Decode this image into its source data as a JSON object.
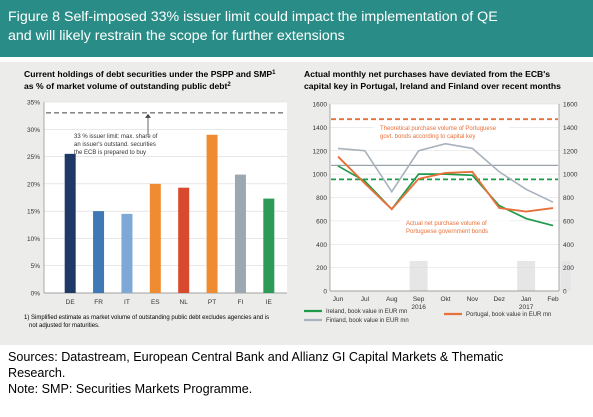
{
  "header": {
    "title_line1": "Figure 8  Self-imposed 33% issuer limit could impact the implementation of QE",
    "title_line2": "and will likely restrain the scope for further extensions"
  },
  "colors": {
    "header_bg": "#2a8c86",
    "panel_bg": "#ececea",
    "bar_navy": "#1f3966",
    "bar_blue": "#3f78b6",
    "bar_lightblue": "#7ea8d6",
    "bar_orange": "#ef8c32",
    "bar_red": "#d8492d",
    "bar_gray": "#9da7b1",
    "bar_green": "#2e9a58",
    "ireland_line": "#1e9a4a",
    "finland_line": "#a8b2bd",
    "portugal_line": "#e8703a",
    "theoretical_line": "#e8703a",
    "capital_key_ireland": "#1e9a4a",
    "capital_key_finland": "#9aa3ac"
  },
  "chart_data": [
    {
      "type": "bar",
      "title_line1": "Current holdings of debt securities under the PSPP and SMP",
      "title_sup1": "1",
      "title_line2": "as % of market volume of outstanding public debt",
      "title_sup2": "2",
      "categories": [
        "DE",
        "FR",
        "IT",
        "ES",
        "NL",
        "PT",
        "FI",
        "IE"
      ],
      "values": [
        25.5,
        15,
        14.5,
        20,
        19.3,
        29,
        21.7,
        17.3
      ],
      "bar_colors": [
        "#1f3966",
        "#3f78b6",
        "#7ea8d6",
        "#ef8c32",
        "#d8492d",
        "#ef8c32",
        "#9da7b1",
        "#2e9a58"
      ],
      "ylim": [
        0,
        35
      ],
      "yticks": [
        "0%",
        "5%",
        "10%",
        "15%",
        "20%",
        "25%",
        "30%",
        "35%"
      ],
      "limit_value": 33,
      "annotation": [
        "33 % issuer limit: max. share of",
        "an issuer's outstand. securities",
        "the ECB is prepared to buy"
      ],
      "footnote": [
        "1) Simplified estimate as market volume of outstanding public debt excludes agencies and is",
        "not adjusted for maturities."
      ]
    },
    {
      "type": "line",
      "title_line1": "Actual monthly net purchases have deviated from the ECB's",
      "title_line2": "capital key in Portugal, Ireland and Finland over recent months",
      "x": [
        "Jun",
        "Jul",
        "Aug",
        "Sep",
        "Okt",
        "Nov",
        "Dez",
        "Jan",
        "Feb"
      ],
      "year_labels": [
        {
          "label": "2016",
          "at": "Sep"
        },
        {
          "label": "2017",
          "at": "Jan"
        }
      ],
      "ylim": [
        0,
        1600
      ],
      "yticks": [
        0,
        200,
        400,
        600,
        800,
        1000,
        1200,
        1400,
        1600
      ],
      "series": [
        {
          "name": "Ireland, book value in EUR mn",
          "values": [
            1070,
            940,
            700,
            1000,
            1000,
            990,
            730,
            620,
            560
          ]
        },
        {
          "name": "Finland, book value in EUR mn",
          "values": [
            1220,
            1200,
            850,
            1200,
            1260,
            1220,
            1020,
            870,
            760
          ]
        },
        {
          "name": "Portugal, book value in EUR mn",
          "values": [
            1150,
            920,
            700,
            960,
            1010,
            1020,
            710,
            680,
            710
          ]
        }
      ],
      "capital_key_lines": [
        {
          "value": 1470,
          "color": "#e8703a",
          "dash": true,
          "label": [
            "Theoretical purchase volume of Portuguese",
            "govt. bonds according to capital key"
          ]
        },
        {
          "value": 1075,
          "color": "#9aa3ac",
          "dash": false
        },
        {
          "value": 955,
          "color": "#1e9a4a",
          "dash": true
        }
      ],
      "annotation_actual": [
        "Actual net purchase volume of",
        "Portuguese government bonds"
      ]
    }
  ],
  "footer": {
    "line1": "Sources: Datastream, European Central Bank and Allianz GI Capital Markets & Thematic",
    "line2": "Research.",
    "line3": "Note: SMP: Securities Markets Programme."
  }
}
